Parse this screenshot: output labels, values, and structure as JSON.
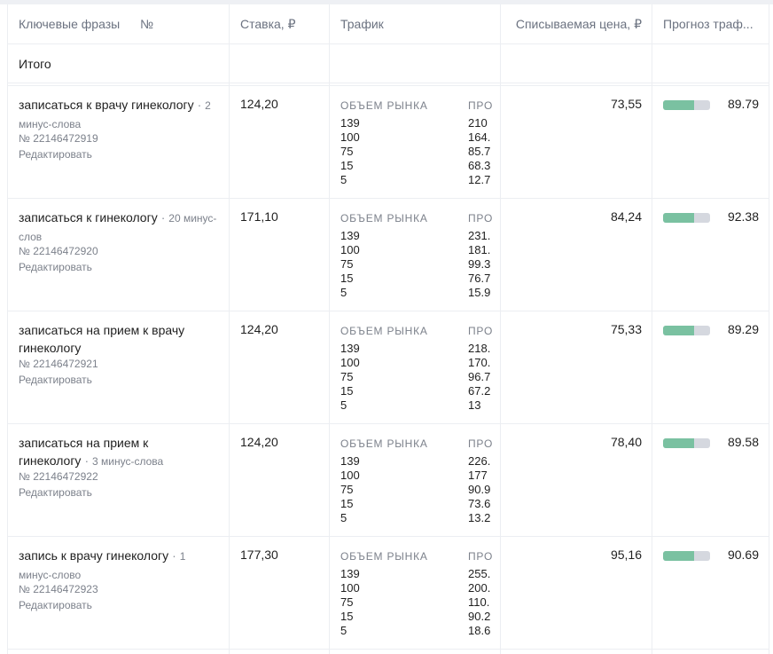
{
  "header": {
    "phrases": "Ключевые фразы",
    "number": "№",
    "bid": "Ставка, ₽",
    "traffic": "Трафик",
    "price": "Списываемая цена, ₽",
    "forecast": "Прогноз траф..."
  },
  "total_label": "Итого",
  "traffic_market_label": "ОБЪЕМ РЫНКА",
  "traffic_pro_label": "ПРО",
  "colors": {
    "bar_fill": "#7ac1a1",
    "bar_track": "#d5d8df"
  },
  "rows": [
    {
      "phrase": "записаться к врачу гинекологу",
      "minus_words": "2 минус-слова",
      "id": "№ 22146472919",
      "edit": "Редактировать",
      "bid": "124,20",
      "traffic_market": [
        "139",
        "100",
        "75",
        "15",
        "5"
      ],
      "traffic_pro": [
        "210",
        "164.",
        "85.7",
        "68.3",
        "12.7"
      ],
      "price": "73,55",
      "forecast": "89.79",
      "bar_fraction": 0.66
    },
    {
      "phrase": "записаться к гинекологу",
      "minus_words": "20 минус-слов",
      "id": "№ 22146472920",
      "edit": "Редактировать",
      "bid": "171,10",
      "traffic_market": [
        "139",
        "100",
        "75",
        "15",
        "5"
      ],
      "traffic_pro": [
        "231.",
        "181.",
        "99.3",
        "76.7",
        "15.9"
      ],
      "price": "84,24",
      "forecast": "92.38",
      "bar_fraction": 0.66
    },
    {
      "phrase": "записаться на прием к врачу гинекологу",
      "minus_words": "",
      "id": "№ 22146472921",
      "edit": "Редактировать",
      "bid": "124,20",
      "traffic_market": [
        "139",
        "100",
        "75",
        "15",
        "5"
      ],
      "traffic_pro": [
        "218.",
        "170.",
        "96.7",
        "67.2",
        "13"
      ],
      "price": "75,33",
      "forecast": "89.29",
      "bar_fraction": 0.66
    },
    {
      "phrase": "записаться на прием к гинекологу",
      "minus_words": "3 минус-слова",
      "id": "№ 22146472922",
      "edit": "Редактировать",
      "bid": "124,20",
      "traffic_market": [
        "139",
        "100",
        "75",
        "15",
        "5"
      ],
      "traffic_pro": [
        "226.",
        "177",
        "90.9",
        "73.6",
        "13.2"
      ],
      "price": "78,40",
      "forecast": "89.58",
      "bar_fraction": 0.66
    },
    {
      "phrase": "запись к врачу гинекологу",
      "minus_words": "1 минус-слово",
      "id": "№ 22146472923",
      "edit": "Редактировать",
      "bid": "177,30",
      "traffic_market": [
        "139",
        "100",
        "75",
        "15",
        "5"
      ],
      "traffic_pro": [
        "255.",
        "200.",
        "110.",
        "90.2",
        "18.6"
      ],
      "price": "95,16",
      "forecast": "90.69",
      "bar_fraction": 0.66
    }
  ]
}
